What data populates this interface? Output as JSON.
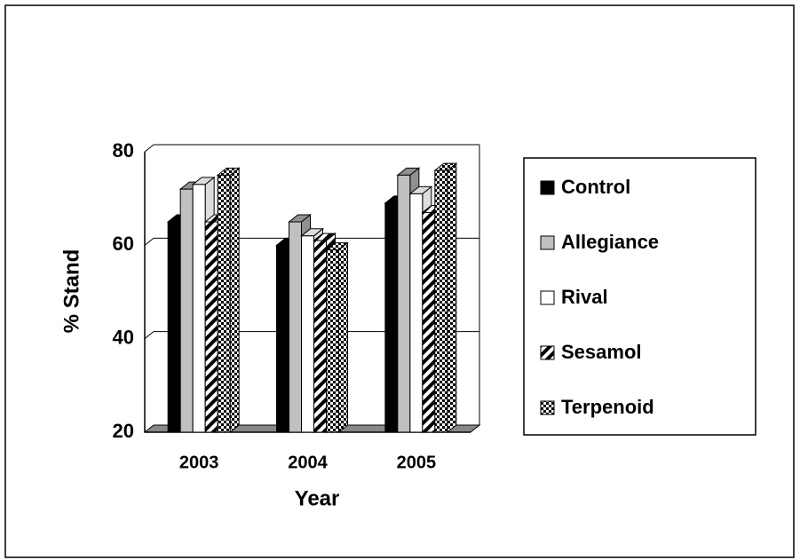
{
  "chart_data": {
    "type": "bar3d",
    "x_label": "Year",
    "y_label": "% Stand",
    "categories": [
      "2003",
      "2004",
      "2005"
    ],
    "series": [
      {
        "name": "Control",
        "color": "#000000",
        "pattern": "solid",
        "values": [
          65,
          60,
          69
        ]
      },
      {
        "name": "Allegiance",
        "color": "#c0c0c0",
        "pattern": "solid",
        "values": [
          72,
          65,
          75
        ]
      },
      {
        "name": "Rival",
        "color": "#ffffff",
        "pattern": "solid",
        "values": [
          73,
          62,
          71
        ]
      },
      {
        "name": "Sesamol",
        "color": "#000000",
        "pattern": "stripes",
        "values": [
          65,
          61,
          67
        ]
      },
      {
        "name": "Terpenoid",
        "color": "#000000",
        "pattern": "checker",
        "values": [
          75,
          59,
          76
        ]
      }
    ],
    "ylim": [
      20,
      80
    ],
    "yticks": [
      20,
      40,
      60,
      80
    ],
    "grid": true,
    "legend": "right"
  }
}
